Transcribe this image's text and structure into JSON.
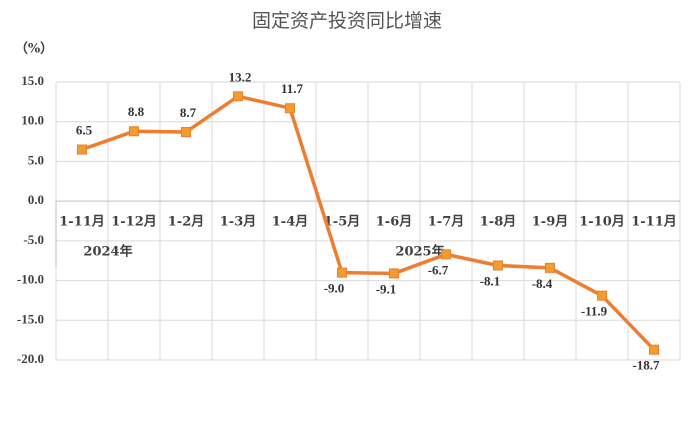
{
  "chart_data": {
    "type": "line",
    "title": "固定资产投资同比增速",
    "y_label": "（%）",
    "categories": [
      "1-11月",
      "1-12月",
      "1-2月",
      "1-3月",
      "1-4月",
      "1-5月",
      "1-6月",
      "1-7月",
      "1-8月",
      "1-9月",
      "1-10月",
      "1-11月"
    ],
    "annotations": [
      "2024年",
      "2025年"
    ],
    "series": [
      {
        "name": "固定资产投资同比增速",
        "color": "#ed7d31",
        "marker_color": "#f29b2e",
        "values": [
          6.5,
          8.8,
          8.7,
          13.2,
          11.7,
          -9.0,
          -9.1,
          -6.7,
          -8.1,
          -8.4,
          -11.9,
          -18.7
        ],
        "value_labels": [
          "6.5",
          "8.8",
          "8.7",
          "13.2",
          "11.7",
          "-9.0",
          "-9.1",
          "-6.7",
          "-8.1",
          "-8.4",
          "-11.9",
          "-18.7"
        ]
      }
    ],
    "ylim": [
      -20,
      15
    ],
    "yticks": [
      {
        "value": 15,
        "label": "15.0"
      },
      {
        "value": 10,
        "label": "10.0"
      },
      {
        "value": 5,
        "label": "5.0"
      },
      {
        "value": 0,
        "label": "0.0"
      },
      {
        "value": -5,
        "label": "-5.0"
      },
      {
        "value": -10,
        "label": "-10.0"
      },
      {
        "value": -15,
        "label": "-15.0"
      },
      {
        "value": -20,
        "label": "-20.0"
      }
    ],
    "grid": true
  }
}
